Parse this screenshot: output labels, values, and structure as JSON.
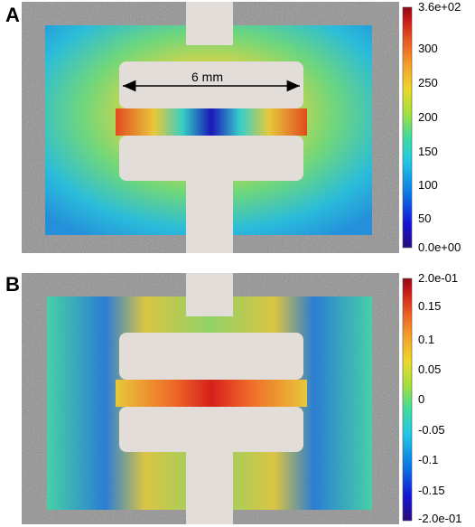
{
  "panels": [
    {
      "letter": "A",
      "annotation": "6 mm",
      "colorbar": {
        "ticks": [
          "3.6e+02",
          "300",
          "250",
          "200",
          "150",
          "100",
          "50",
          "0.0e+00"
        ]
      }
    },
    {
      "letter": "B",
      "colorbar": {
        "ticks": [
          "2.0e-01",
          "0.15",
          "0.1",
          "0.05",
          "0",
          "-0.05",
          "-0.1",
          "-0.15",
          "-2.0e-01"
        ]
      }
    }
  ],
  "colormap": [
    "#2a0b7f",
    "#1414d2",
    "#0a74e6",
    "#20c8e6",
    "#3fdc9c",
    "#a5e03c",
    "#ecd72c",
    "#f6a02a",
    "#ea5a22",
    "#c61818",
    "#8e0a12"
  ]
}
